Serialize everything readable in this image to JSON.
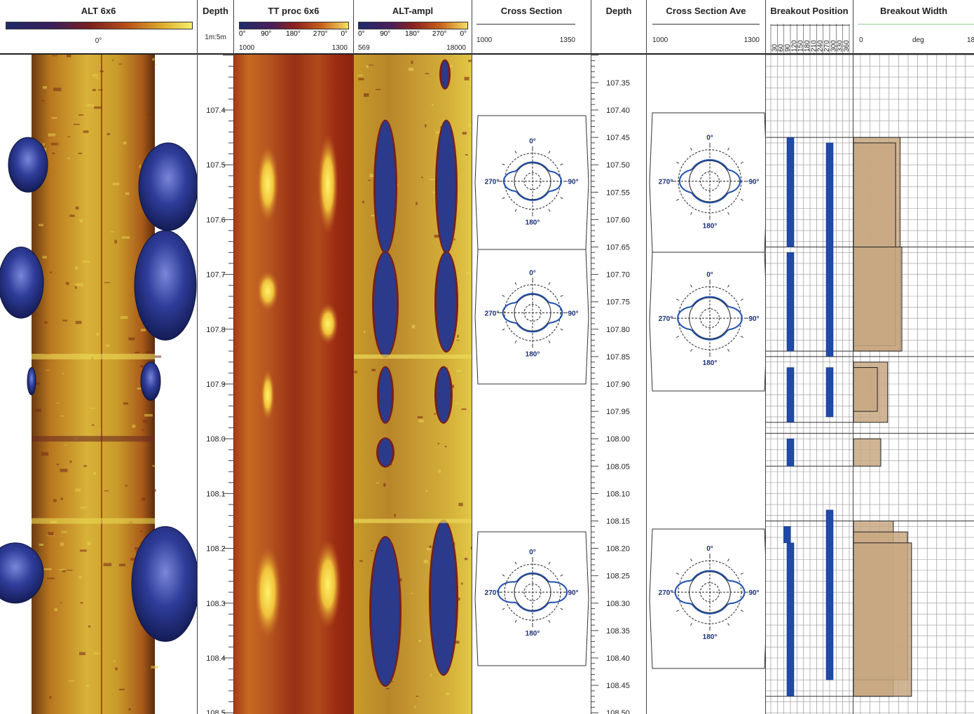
{
  "chart_data": {
    "type": "table",
    "depth_unit_scale": "1m:5m",
    "depth_ticks_left": [
      "107.4",
      "107.5",
      "107.6",
      "107.7",
      "107.8",
      "107.9",
      "108.0",
      "108.1",
      "108.2",
      "108.3",
      "108.4",
      "108.5"
    ],
    "depth_ticks_right": [
      "107.35",
      "107.40",
      "107.45",
      "107.50",
      "107.55",
      "107.60",
      "107.65",
      "107.70",
      "107.75",
      "107.80",
      "107.85",
      "107.90",
      "107.95",
      "108.00",
      "108.05",
      "108.10",
      "108.15",
      "108.20",
      "108.25",
      "108.30",
      "108.35",
      "108.40",
      "108.45",
      "108.50"
    ],
    "tracks": {
      "alt_6x6": {
        "title": "ALT 6x6",
        "scale_label": "0°"
      },
      "depth_left": {
        "title": "Depth"
      },
      "tt_proc": {
        "title": "TT proc 6x6",
        "ticks": [
          "0°",
          "90°",
          "180°",
          "270°",
          "0°"
        ],
        "min": "1000",
        "max": "1300"
      },
      "alt_ampl": {
        "title": "ALT-ampl",
        "ticks": [
          "0°",
          "90°",
          "180°",
          "270°",
          "0°"
        ],
        "min": "569",
        "max": "18000"
      },
      "cross_section": {
        "title": "Cross Section",
        "min": "1000",
        "max": "1350"
      },
      "depth_right": {
        "title": "Depth"
      },
      "cross_section_ave": {
        "title": "Cross Section Ave",
        "min": "1000",
        "max": "1300"
      },
      "breakout_position": {
        "title": "Breakout Position",
        "ticks": [
          "30",
          "60",
          "90",
          "120",
          "150",
          "180",
          "210",
          "240",
          "270",
          "300",
          "330",
          "360"
        ]
      },
      "breakout_width": {
        "title": "Breakout Width",
        "min": "0",
        "unit": "deg",
        "max": "18"
      }
    },
    "polar_labels": {
      "top": "0°",
      "right": "90°",
      "bottom": "180°",
      "left": "270°"
    },
    "breakout_intervals": [
      {
        "top": 107.45,
        "bottom": 107.65
      },
      {
        "top": 107.65,
        "bottom": 107.84
      },
      {
        "top": 107.85,
        "bottom": 107.97
      },
      {
        "top": 107.99,
        "bottom": 108.05
      },
      {
        "top": 108.15,
        "bottom": 108.47
      }
    ],
    "breakout_position_bars": [
      {
        "azimuth": 90,
        "top": 107.45,
        "bottom": 107.65
      },
      {
        "azimuth": 90,
        "top": 107.66,
        "bottom": 107.84
      },
      {
        "azimuth": 90,
        "top": 107.87,
        "bottom": 107.97
      },
      {
        "azimuth": 90,
        "top": 108.0,
        "bottom": 108.05
      },
      {
        "azimuth": 75,
        "top": 108.16,
        "bottom": 108.19
      },
      {
        "azimuth": 90,
        "top": 108.19,
        "bottom": 108.47
      },
      {
        "azimuth": 270,
        "top": 107.46,
        "bottom": 107.85
      },
      {
        "azimuth": 270,
        "top": 107.87,
        "bottom": 107.96
      },
      {
        "azimuth": 270,
        "top": 108.13,
        "bottom": 108.44
      }
    ],
    "breakout_width_boxes": [
      {
        "top": 107.45,
        "bottom": 107.84,
        "width": 8.2
      },
      {
        "top": 107.46,
        "bottom": 107.83,
        "width": 7.4
      },
      {
        "top": 107.65,
        "bottom": 107.84,
        "width": 8.5
      },
      {
        "top": 107.86,
        "bottom": 107.97,
        "width": 6.0
      },
      {
        "top": 107.87,
        "bottom": 107.95,
        "width": 4.2
      },
      {
        "top": 108.0,
        "bottom": 108.05,
        "width": 4.8
      },
      {
        "top": 108.15,
        "bottom": 108.47,
        "width": 7.0
      },
      {
        "top": 108.17,
        "bottom": 108.44,
        "width": 9.5
      },
      {
        "top": 108.19,
        "bottom": 108.47,
        "width": 10.2
      }
    ],
    "cross_sections": [
      {
        "depth": 107.53
      },
      {
        "depth": 107.77
      },
      {
        "depth": 108.28
      }
    ],
    "cross_sections_ave": [
      {
        "depth": 107.53
      },
      {
        "depth": 107.78
      },
      {
        "depth": 108.28
      }
    ]
  }
}
